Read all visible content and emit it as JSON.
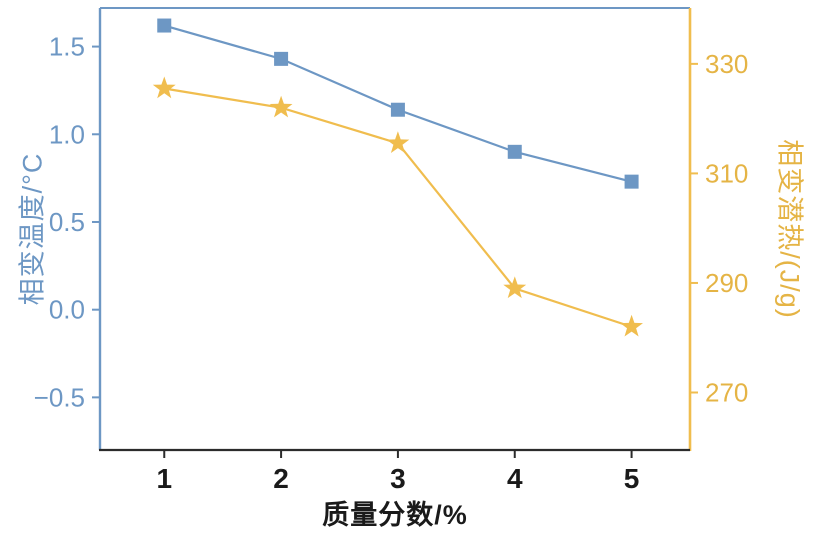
{
  "colors": {
    "temperature_blue": "#6d97c4",
    "latent_heat_gold": "#f0bd4e",
    "axis_gold_text": "#e5b445",
    "x_axis_text": "#1a1a1a",
    "bottom_spine": "#2b2b2b"
  },
  "chart_data": {
    "type": "line",
    "x": [
      1,
      2,
      3,
      4,
      5
    ],
    "x_tick_labels": [
      "1",
      "2",
      "3",
      "4",
      "5"
    ],
    "series": [
      {
        "name": "相变温度",
        "axis": "left",
        "marker": "square",
        "color": "#6d97c4",
        "values": [
          1.62,
          1.43,
          1.14,
          0.9,
          0.73
        ]
      },
      {
        "name": "相变潜热",
        "axis": "right",
        "marker": "star",
        "color": "#f0bd4e",
        "values": [
          325.5,
          322,
          315.5,
          289,
          282
        ]
      }
    ],
    "left_ticks": [
      {
        "v": 1.5,
        "label": "1.5"
      },
      {
        "v": 1.0,
        "label": "1.0"
      },
      {
        "v": 0.5,
        "label": "0.5"
      },
      {
        "v": 0.0,
        "label": "0.0"
      },
      {
        "v": -0.5,
        "label": "−0.5"
      }
    ],
    "right_ticks": [
      {
        "v": 330,
        "label": "330"
      },
      {
        "v": 310,
        "label": "310"
      },
      {
        "v": 290,
        "label": "290"
      },
      {
        "v": 270,
        "label": "270"
      }
    ],
    "x_range": [
      0.45,
      5.5
    ],
    "left_range": [
      -0.8,
      1.72
    ],
    "right_range": [
      259.5,
      340.2
    ],
    "xlabel": "质量分数/%",
    "ylabel_left": "相变温度/°C",
    "ylabel_right": "相变潜热/(J/g)",
    "grid": false,
    "legend": "none"
  }
}
